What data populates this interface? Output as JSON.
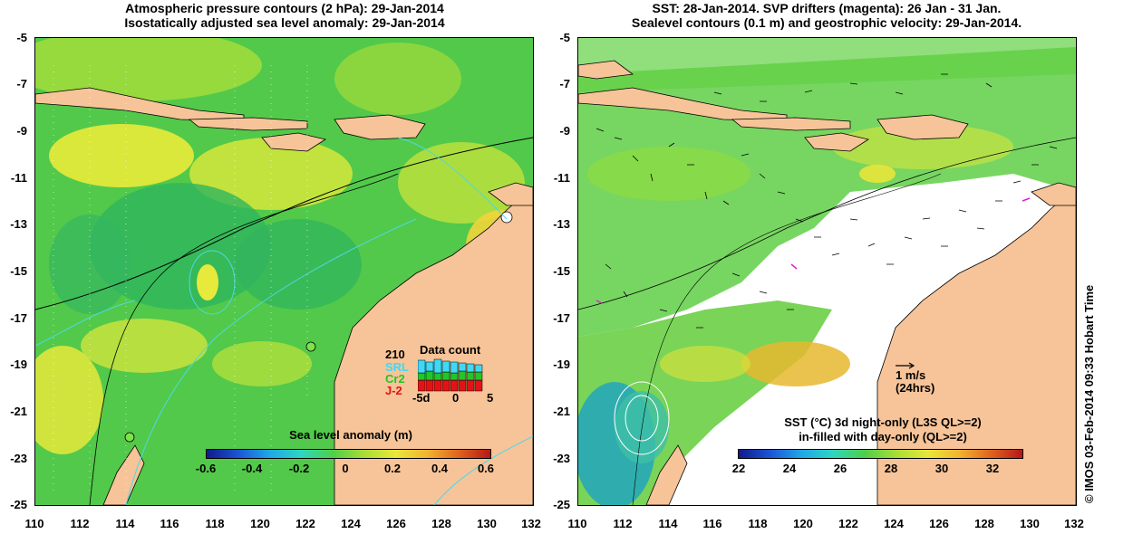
{
  "left_panel": {
    "title_line1": "Atmospheric pressure contours (2 hPa): 29-Jan-2014",
    "title_line2": "Isostatically adjusted sea level anomaly: 29-Jan-2014",
    "colorbar_label": "Sea level anomaly (m)",
    "colorbar_ticks": [
      "-0.6",
      "-0.4",
      "-0.2",
      "0",
      "0.2",
      "0.4",
      "0.6"
    ],
    "data_count": {
      "title": "Data count",
      "total": "210",
      "missions": [
        {
          "name": "SRL",
          "color": "#3fd9f5"
        },
        {
          "name": "Cr2",
          "color": "#22c52b"
        },
        {
          "name": "J-2",
          "color": "#e41313"
        }
      ],
      "x_ticks": [
        "-5d",
        "0",
        "5"
      ]
    }
  },
  "right_panel": {
    "title_line1": "SST: 28-Jan-2014. SVP drifters (magenta): 26 Jan - 31 Jan.",
    "title_line2": "Sealevel contours (0.1 m) and geostrophic velocity: 29-Jan-2014.",
    "colorbar_label_line1": "SST (°C)  3d night-only (L3S QL>=2)",
    "colorbar_label_line2": "in-filled with day-only (QL>=2)",
    "colorbar_ticks": [
      "22",
      "24",
      "26",
      "28",
      "30",
      "32"
    ],
    "velocity_scale": {
      "label1": "1 m/s",
      "label2": "(24hrs)"
    }
  },
  "axes": {
    "y_ticks": [
      "-5",
      "-7",
      "-9",
      "-11",
      "-13",
      "-15",
      "-17",
      "-19",
      "-21",
      "-23",
      "-25"
    ],
    "x_ticks": [
      "110",
      "112",
      "114",
      "116",
      "118",
      "120",
      "122",
      "124",
      "126",
      "128",
      "130",
      "132"
    ]
  },
  "credit": "© IMOS 03-Feb-2014 09:33 Hobart Time",
  "colors": {
    "land": "#f6c498",
    "anomaly_bg": "#4fc84a",
    "sst_bg": "#ffffff"
  }
}
